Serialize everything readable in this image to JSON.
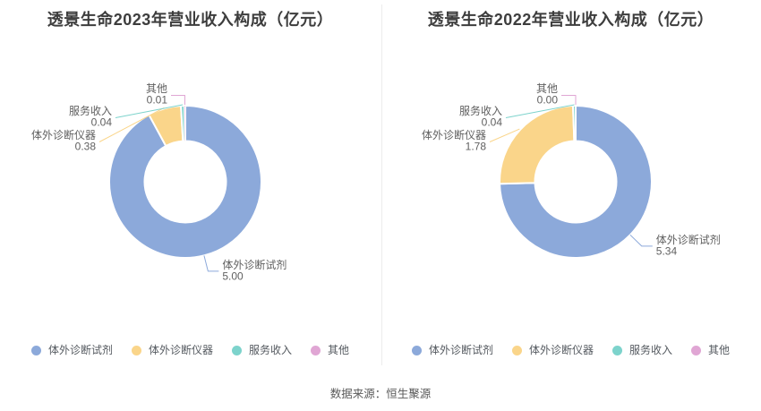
{
  "page": {
    "source_note": "数据来源：恒生聚源"
  },
  "palette": [
    "#8CA9DA",
    "#FAD58A",
    "#7DD3CC",
    "#E0A6D4"
  ],
  "legend": {
    "items": [
      "体外诊断试剂",
      "体外诊断仪器",
      "服务收入",
      "其他"
    ]
  },
  "chart_data": [
    {
      "type": "pie",
      "subtype": "donut",
      "title": "透景生命2023年营业收入构成（亿元）",
      "unit": "亿元",
      "legend_position": "bottom",
      "categories": [
        "体外诊断试剂",
        "体外诊断仪器",
        "服务收入",
        "其他"
      ],
      "values": [
        5.0,
        0.38,
        0.04,
        0.01
      ],
      "value_labels": [
        "5.00",
        "0.38",
        "0.04",
        "0.01"
      ]
    },
    {
      "type": "pie",
      "subtype": "donut",
      "title": "透景生命2022年营业收入构成（亿元）",
      "unit": "亿元",
      "legend_position": "bottom",
      "categories": [
        "体外诊断试剂",
        "体外诊断仪器",
        "服务收入",
        "其他"
      ],
      "values": [
        5.34,
        1.78,
        0.04,
        0.0
      ],
      "value_labels": [
        "5.34",
        "1.78",
        "0.04",
        "0.00"
      ]
    }
  ]
}
